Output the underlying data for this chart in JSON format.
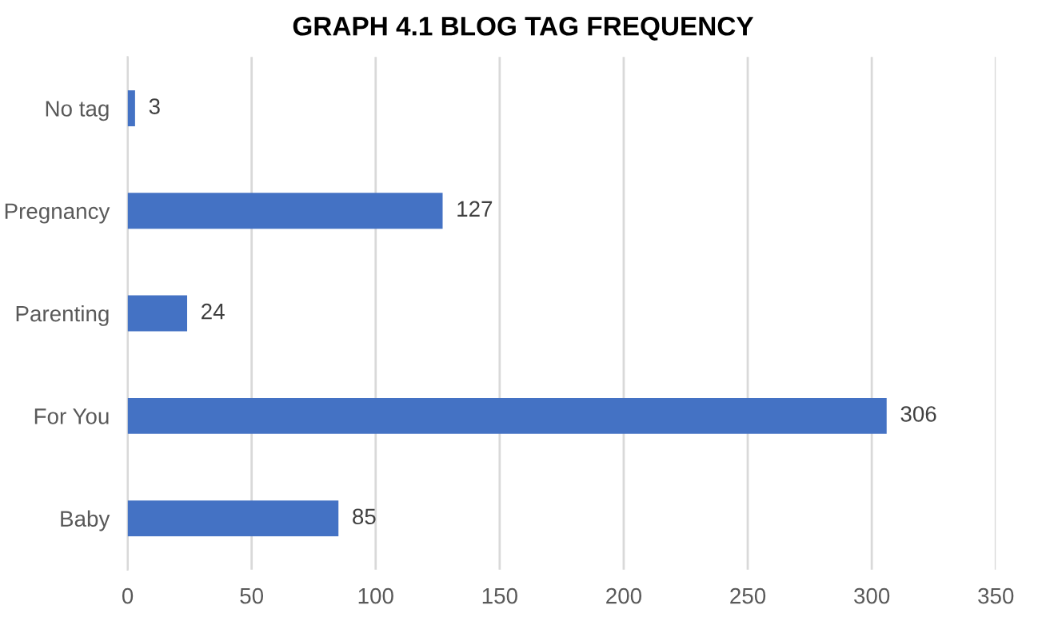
{
  "chart_data": {
    "type": "bar",
    "orientation": "horizontal",
    "title": "GRAPH 4.1 BLOG TAG FREQUENCY",
    "categories": [
      "No tag",
      "Pregnancy",
      "Parenting",
      "For You",
      "Baby"
    ],
    "values": [
      3,
      127,
      24,
      306,
      85
    ],
    "color": "#4472c4",
    "xlim": [
      0,
      350
    ],
    "xticks": [
      0,
      50,
      100,
      150,
      200,
      250,
      300,
      350
    ],
    "grid": "x",
    "data_labels": true
  }
}
